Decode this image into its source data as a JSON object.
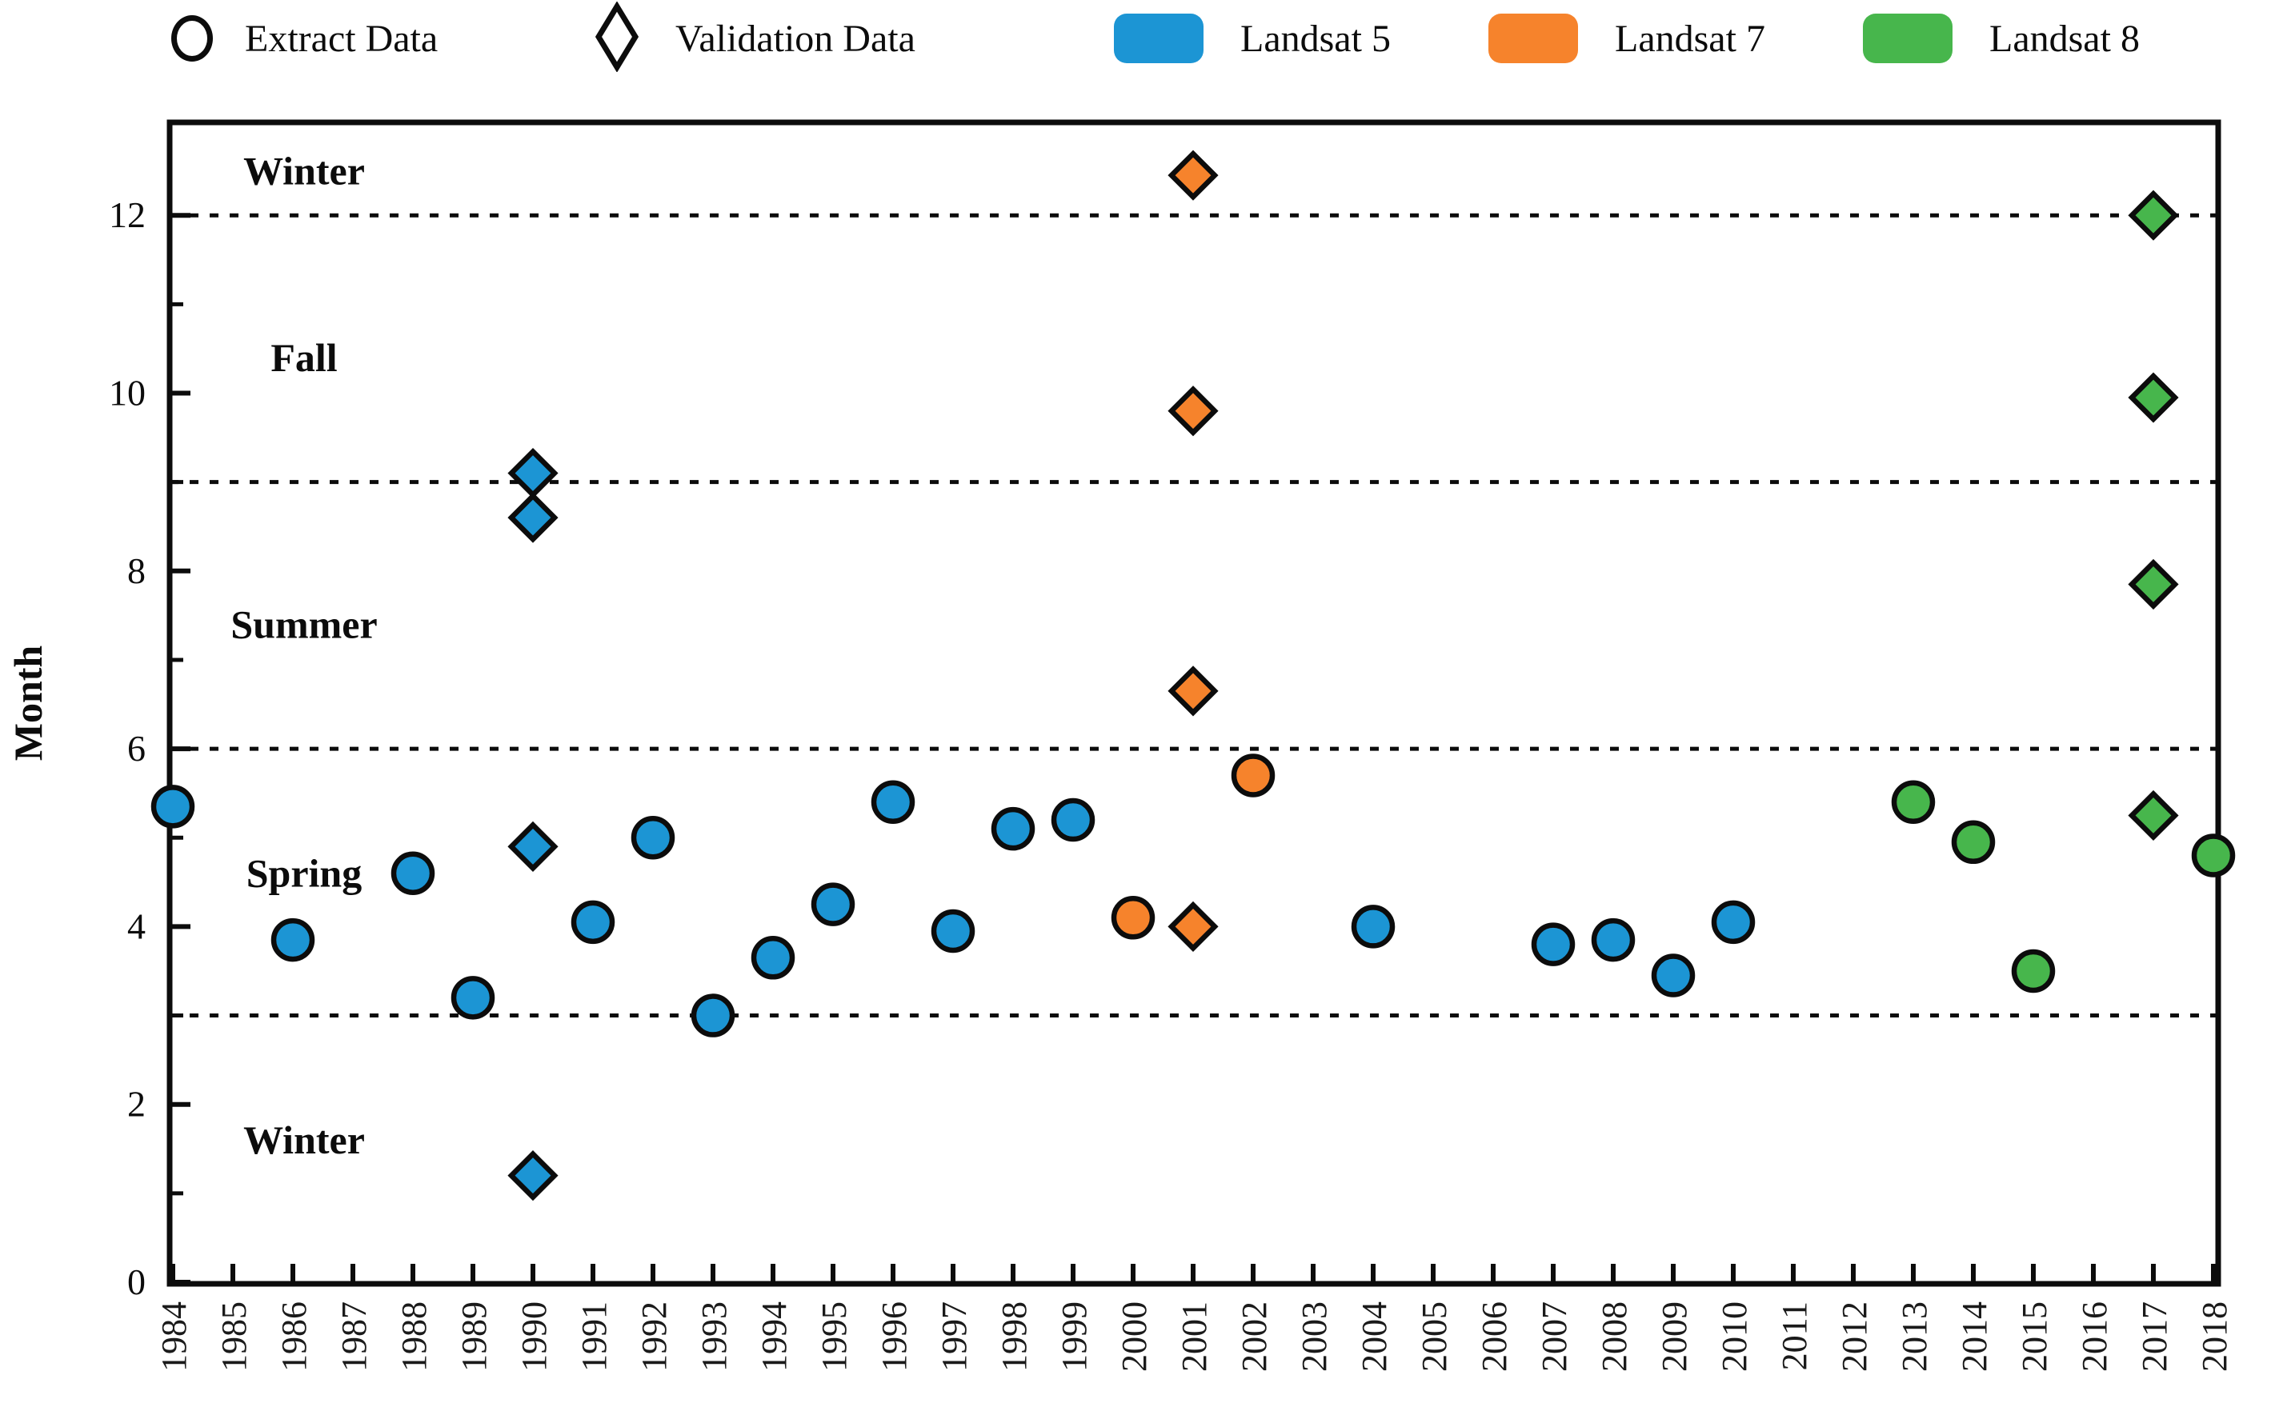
{
  "legend": {
    "extract_label": "Extract Data",
    "validation_label": "Validation Data",
    "series": [
      {
        "name": "Landsat 5",
        "color": "#1C95D4"
      },
      {
        "name": "Landsat 7",
        "color": "#F6832C"
      },
      {
        "name": "Landsat 8",
        "color": "#47B64C"
      }
    ]
  },
  "axes": {
    "ylabel": "Month",
    "y_major_ticks": [
      0,
      2,
      4,
      6,
      8,
      10,
      12
    ],
    "y_minor_ticks": [
      1,
      3,
      5,
      7,
      9,
      11
    ],
    "x_ticks": [
      1984,
      1985,
      1986,
      1987,
      1988,
      1989,
      1990,
      1991,
      1992,
      1993,
      1994,
      1995,
      1996,
      1997,
      1998,
      1999,
      2000,
      2001,
      2002,
      2003,
      2004,
      2005,
      2006,
      2007,
      2008,
      2009,
      2010,
      2011,
      2012,
      2013,
      2014,
      2015,
      2016,
      2017,
      2018
    ]
  },
  "chart_data": {
    "type": "scatter",
    "title": "",
    "xlabel": "",
    "ylabel": "Month",
    "xlim": [
      1984,
      2018
    ],
    "ylim": [
      0,
      13.05
    ],
    "grid_dotted_months": [
      3,
      6,
      9,
      12
    ],
    "legend_position": "top",
    "marker_extract": "circle",
    "marker_validation": "diamond",
    "season_labels": [
      {
        "text": "Winter",
        "month": 12.5
      },
      {
        "text": "Fall",
        "month": 10.4
      },
      {
        "text": "Summer",
        "month": 7.4
      },
      {
        "text": "Spring",
        "month": 4.6
      },
      {
        "text": "Winter",
        "month": 1.6
      }
    ],
    "series": [
      {
        "name": "Landsat 5",
        "color": "#1C95D4",
        "extract": [
          [
            1984,
            5.35
          ],
          [
            1986,
            3.85
          ],
          [
            1988,
            4.6
          ],
          [
            1989,
            3.2
          ],
          [
            1991,
            4.05
          ],
          [
            1992,
            5.0
          ],
          [
            1993,
            3.0
          ],
          [
            1994,
            3.65
          ],
          [
            1995,
            4.25
          ],
          [
            1996,
            5.4
          ],
          [
            1997,
            3.95
          ],
          [
            1998,
            5.1
          ],
          [
            1999,
            5.2
          ],
          [
            2004,
            4.0
          ],
          [
            2007,
            3.8
          ],
          [
            2008,
            3.85
          ],
          [
            2009,
            3.45
          ],
          [
            2010,
            4.05
          ]
        ],
        "validation": [
          [
            1990,
            9.1
          ],
          [
            1990,
            8.6
          ],
          [
            1990,
            4.9
          ],
          [
            1990,
            1.2
          ]
        ]
      },
      {
        "name": "Landsat 7",
        "color": "#F6832C",
        "extract": [
          [
            2000,
            4.1
          ],
          [
            2002,
            5.7
          ]
        ],
        "validation": [
          [
            2001,
            12.45
          ],
          [
            2001,
            9.8
          ],
          [
            2001,
            6.65
          ],
          [
            2001,
            4.0
          ]
        ]
      },
      {
        "name": "Landsat 8",
        "color": "#47B64C",
        "extract": [
          [
            2013,
            5.4
          ],
          [
            2014,
            4.95
          ],
          [
            2015,
            3.5
          ],
          [
            2018,
            4.8
          ]
        ],
        "validation": [
          [
            2017,
            12.0
          ],
          [
            2017,
            9.95
          ],
          [
            2017,
            7.85
          ],
          [
            2017,
            5.25
          ]
        ]
      }
    ]
  }
}
